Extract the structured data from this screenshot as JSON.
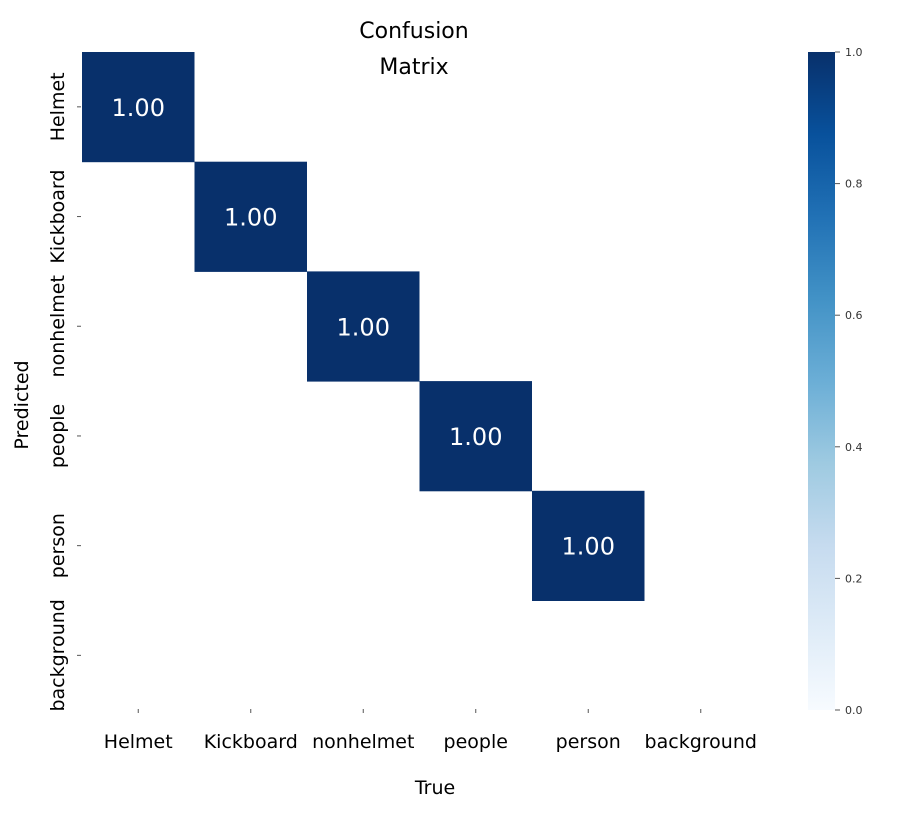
{
  "chart_data": {
    "type": "heatmap",
    "title_lines": [
      "Confusion",
      "Matrix"
    ],
    "xlabel": "True",
    "ylabel": "Predicted",
    "x_categories": [
      "Helmet",
      "Kickboard",
      "nonhelmet",
      "people",
      "person",
      "background"
    ],
    "y_categories": [
      "Helmet",
      "Kickboard",
      "nonhelmet",
      "people",
      "person",
      "background"
    ],
    "values": [
      [
        1.0,
        null,
        null,
        null,
        null,
        null
      ],
      [
        null,
        1.0,
        null,
        null,
        null,
        null
      ],
      [
        null,
        null,
        1.0,
        null,
        null,
        null
      ],
      [
        null,
        null,
        null,
        1.0,
        null,
        null
      ],
      [
        null,
        null,
        null,
        null,
        1.0,
        null
      ],
      [
        null,
        null,
        null,
        null,
        null,
        null
      ]
    ],
    "cell_labels": [
      [
        "1.00",
        "",
        "",
        "",
        "",
        ""
      ],
      [
        "",
        "1.00",
        "",
        "",
        "",
        ""
      ],
      [
        "",
        "",
        "1.00",
        "",
        "",
        ""
      ],
      [
        "",
        "",
        "",
        "1.00",
        "",
        ""
      ],
      [
        "",
        "",
        "",
        "",
        "1.00",
        ""
      ],
      [
        "",
        "",
        "",
        "",
        "",
        ""
      ]
    ],
    "colorbar": {
      "vmin": 0.0,
      "vmax": 1.0,
      "ticks": [
        0.0,
        0.2,
        0.4,
        0.6,
        0.8,
        1.0
      ],
      "tick_labels": [
        "0.0",
        "0.2",
        "0.4",
        "0.6",
        "0.8",
        "1.0"
      ],
      "colormap": "Blues",
      "colors": [
        "#f7fbff",
        "#deebf7",
        "#c6dbef",
        "#9ecae1",
        "#6baed6",
        "#4292c6",
        "#2171b5",
        "#08519c",
        "#08306b"
      ]
    },
    "cell_text_color": "#ffffff",
    "text_color": "#000000"
  }
}
